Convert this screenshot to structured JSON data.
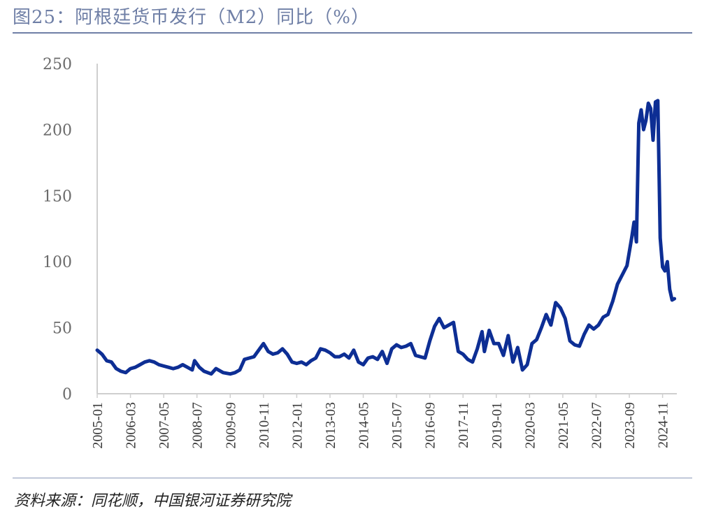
{
  "header": {
    "title": "图25：阿根廷货币发行（M2）同比（%）"
  },
  "footer": {
    "source": "资料来源：同花顺，中国银河证券研究院"
  },
  "colors": {
    "line": "#0d2e94",
    "title": "#6f7fa6",
    "axis": "#cfcfcf"
  },
  "chart_data": {
    "type": "line",
    "title": "",
    "xlabel": "",
    "ylabel": "",
    "ylim": [
      0,
      250
    ],
    "yticks": [
      "0",
      "50",
      "100",
      "150",
      "200",
      "250"
    ],
    "xticks": [
      "2005-01",
      "2006-03",
      "2007-05",
      "2008-07",
      "2009-09",
      "2010-11",
      "2012-01",
      "2013-03",
      "2014-05",
      "2015-07",
      "2016-09",
      "2017-11",
      "2019-01",
      "2020-03",
      "2021-05",
      "2022-07",
      "2023-09",
      "2024-11"
    ],
    "grid": false,
    "legend": "none",
    "series": [
      {
        "points": [
          [
            "2005-01",
            33
          ],
          [
            "2005-03",
            30
          ],
          [
            "2005-05",
            25
          ],
          [
            "2005-07",
            24
          ],
          [
            "2005-09",
            19
          ],
          [
            "2005-11",
            17
          ],
          [
            "2006-01",
            16
          ],
          [
            "2006-03",
            19
          ],
          [
            "2006-05",
            20
          ],
          [
            "2006-07",
            22
          ],
          [
            "2006-09",
            24
          ],
          [
            "2006-11",
            25
          ],
          [
            "2007-01",
            24
          ],
          [
            "2007-03",
            22
          ],
          [
            "2007-05",
            21
          ],
          [
            "2007-07",
            20
          ],
          [
            "2007-09",
            19
          ],
          [
            "2007-11",
            20
          ],
          [
            "2008-01",
            22
          ],
          [
            "2008-03",
            20
          ],
          [
            "2008-05",
            18
          ],
          [
            "2008-06",
            25
          ],
          [
            "2008-08",
            20
          ],
          [
            "2008-10",
            17
          ],
          [
            "2009-01",
            15
          ],
          [
            "2009-03",
            19
          ],
          [
            "2009-06",
            16
          ],
          [
            "2009-09",
            15
          ],
          [
            "2009-11",
            16
          ],
          [
            "2010-01",
            18
          ],
          [
            "2010-03",
            26
          ],
          [
            "2010-05",
            27
          ],
          [
            "2010-07",
            28
          ],
          [
            "2010-09",
            33
          ],
          [
            "2010-11",
            38
          ],
          [
            "2011-01",
            32
          ],
          [
            "2011-03",
            30
          ],
          [
            "2011-05",
            31
          ],
          [
            "2011-07",
            34
          ],
          [
            "2011-09",
            30
          ],
          [
            "2011-11",
            24
          ],
          [
            "2012-01",
            23
          ],
          [
            "2012-03",
            24
          ],
          [
            "2012-05",
            22
          ],
          [
            "2012-07",
            25
          ],
          [
            "2012-09",
            27
          ],
          [
            "2012-11",
            34
          ],
          [
            "2013-01",
            33
          ],
          [
            "2013-03",
            31
          ],
          [
            "2013-05",
            28
          ],
          [
            "2013-07",
            28
          ],
          [
            "2013-09",
            30
          ],
          [
            "2013-11",
            27
          ],
          [
            "2014-01",
            33
          ],
          [
            "2014-03",
            24
          ],
          [
            "2014-05",
            22
          ],
          [
            "2014-07",
            27
          ],
          [
            "2014-09",
            28
          ],
          [
            "2014-11",
            26
          ],
          [
            "2015-01",
            32
          ],
          [
            "2015-03",
            23
          ],
          [
            "2015-05",
            34
          ],
          [
            "2015-07",
            37
          ],
          [
            "2015-09",
            35
          ],
          [
            "2015-11",
            36
          ],
          [
            "2016-01",
            38
          ],
          [
            "2016-03",
            29
          ],
          [
            "2016-05",
            28
          ],
          [
            "2016-07",
            27
          ],
          [
            "2016-09",
            40
          ],
          [
            "2016-11",
            51
          ],
          [
            "2017-01",
            57
          ],
          [
            "2017-03",
            50
          ],
          [
            "2017-05",
            52
          ],
          [
            "2017-07",
            54
          ],
          [
            "2017-09",
            32
          ],
          [
            "2017-11",
            30
          ],
          [
            "2018-01",
            26
          ],
          [
            "2018-03",
            24
          ],
          [
            "2018-05",
            34
          ],
          [
            "2018-07",
            47
          ],
          [
            "2018-08",
            32
          ],
          [
            "2018-10",
            48
          ],
          [
            "2018-12",
            38
          ],
          [
            "2019-02",
            38
          ],
          [
            "2019-04",
            29
          ],
          [
            "2019-06",
            44
          ],
          [
            "2019-08",
            24
          ],
          [
            "2019-10",
            35
          ],
          [
            "2019-12",
            18
          ],
          [
            "2020-02",
            22
          ],
          [
            "2020-04",
            38
          ],
          [
            "2020-06",
            41
          ],
          [
            "2020-08",
            50
          ],
          [
            "2020-10",
            60
          ],
          [
            "2020-12",
            52
          ],
          [
            "2021-02",
            69
          ],
          [
            "2021-04",
            65
          ],
          [
            "2021-06",
            57
          ],
          [
            "2021-08",
            40
          ],
          [
            "2021-10",
            37
          ],
          [
            "2021-12",
            36
          ],
          [
            "2022-02",
            45
          ],
          [
            "2022-04",
            52
          ],
          [
            "2022-06",
            49
          ],
          [
            "2022-08",
            52
          ],
          [
            "2022-10",
            58
          ],
          [
            "2022-12",
            60
          ],
          [
            "2023-02",
            70
          ],
          [
            "2023-04",
            83
          ],
          [
            "2023-06",
            90
          ],
          [
            "2023-08",
            97
          ],
          [
            "2023-10",
            118
          ],
          [
            "2023-11",
            130
          ],
          [
            "2023-12",
            115
          ],
          [
            "2024-01",
            205
          ],
          [
            "2024-02",
            215
          ],
          [
            "2024-03",
            200
          ],
          [
            "2024-04",
            207
          ],
          [
            "2024-05",
            220
          ],
          [
            "2024-06",
            216
          ],
          [
            "2024-07",
            192
          ],
          [
            "2024-08",
            221
          ],
          [
            "2024-09",
            222
          ],
          [
            "2024-10",
            118
          ],
          [
            "2024-11",
            96
          ],
          [
            "2024-12",
            93
          ],
          [
            "2025-01",
            100
          ],
          [
            "2025-02",
            79
          ],
          [
            "2025-03",
            71
          ],
          [
            "2025-04",
            72
          ]
        ]
      }
    ]
  }
}
